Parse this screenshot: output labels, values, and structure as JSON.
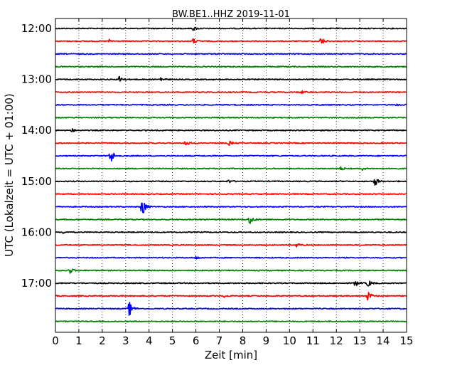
{
  "chart_data": {
    "type": "line",
    "title": "BW.BE1..HHZ 2019-11-01",
    "xlabel": "Zeit  [min]",
    "ylabel": "UTC (Lokalzeit = UTC + 01:00)",
    "xlim": [
      0,
      15
    ],
    "x_ticks": [
      0,
      1,
      2,
      3,
      4,
      5,
      6,
      7,
      8,
      9,
      10,
      11,
      12,
      13,
      14,
      15
    ],
    "x_tick_labels": [
      "0",
      "1",
      "2",
      "3",
      "4",
      "5",
      "6",
      "7",
      "8",
      "9",
      "10",
      "11",
      "12",
      "13",
      "14",
      "15"
    ],
    "grid": "vertical dotted",
    "trace_interval_minutes": 15,
    "y_tick_labels": [
      "12:00",
      "13:00",
      "14:00",
      "15:00",
      "16:00",
      "17:00"
    ],
    "trace_colors": [
      "#000000",
      "#ff0000",
      "#0000ff",
      "#008000"
    ],
    "series": [
      {
        "start": "12:00",
        "events": [
          {
            "t": 5.9,
            "amp": 0.25
          }
        ]
      },
      {
        "start": "12:15",
        "events": [
          {
            "t": 5.9,
            "amp": 0.35
          },
          {
            "t": 11.35,
            "amp": 0.55
          },
          {
            "t": 2.3,
            "amp": 0.2
          }
        ]
      },
      {
        "start": "12:30",
        "events": []
      },
      {
        "start": "12:45",
        "events": []
      },
      {
        "start": "13:00",
        "events": [
          {
            "t": 2.75,
            "amp": 0.55
          },
          {
            "t": 4.5,
            "amp": 0.25
          }
        ]
      },
      {
        "start": "13:15",
        "events": [
          {
            "t": 10.5,
            "amp": 0.2
          }
        ]
      },
      {
        "start": "13:30",
        "events": [
          {
            "t": 14.6,
            "amp": 0.15
          }
        ]
      },
      {
        "start": "13:45",
        "events": []
      },
      {
        "start": "14:00",
        "events": [
          {
            "t": 0.7,
            "amp": 0.2
          }
        ]
      },
      {
        "start": "14:15",
        "events": [
          {
            "t": 5.55,
            "amp": 0.45
          },
          {
            "t": 7.4,
            "amp": 0.3
          }
        ]
      },
      {
        "start": "14:30",
        "events": [
          {
            "t": 2.35,
            "amp": 1.1
          }
        ]
      },
      {
        "start": "14:45",
        "events": [
          {
            "t": 12.2,
            "amp": 0.2
          },
          {
            "t": 13.1,
            "amp": 0.25
          }
        ]
      },
      {
        "start": "15:00",
        "events": [
          {
            "t": 7.4,
            "amp": 0.2
          },
          {
            "t": 13.65,
            "amp": 0.55
          }
        ]
      },
      {
        "start": "15:15",
        "events": []
      },
      {
        "start": "15:30",
        "events": [
          {
            "t": 3.7,
            "amp": 1.4
          }
        ]
      },
      {
        "start": "15:45",
        "events": [
          {
            "t": 8.3,
            "amp": 0.75
          }
        ]
      },
      {
        "start": "16:00",
        "events": [
          {
            "t": 0.3,
            "amp": 0.15
          }
        ]
      },
      {
        "start": "16:15",
        "events": [
          {
            "t": 10.3,
            "amp": 0.3
          }
        ]
      },
      {
        "start": "16:30",
        "events": [
          {
            "t": 6.0,
            "amp": 0.2
          }
        ]
      },
      {
        "start": "16:45",
        "events": [
          {
            "t": 0.6,
            "amp": 0.45
          }
        ]
      },
      {
        "start": "17:00",
        "events": [
          {
            "t": 12.8,
            "amp": 0.45
          },
          {
            "t": 13.35,
            "amp": 0.5
          }
        ]
      },
      {
        "start": "17:15",
        "events": [
          {
            "t": 13.35,
            "amp": 0.75
          },
          {
            "t": 7.2,
            "amp": 0.15
          }
        ]
      },
      {
        "start": "17:30",
        "events": [
          {
            "t": 3.15,
            "amp": 1.0
          }
        ]
      },
      {
        "start": "17:45",
        "events": []
      }
    ]
  }
}
